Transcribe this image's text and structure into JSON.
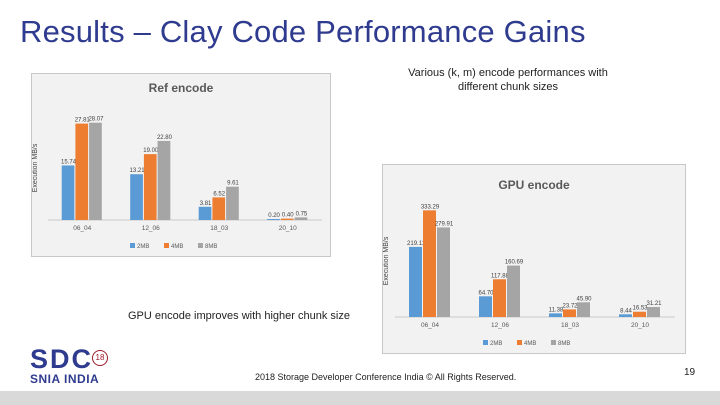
{
  "slide": {
    "title": "Results – Clay Code Performance Gains",
    "subtitle": "Various (k, m) encode performances with different chunk sizes",
    "note": "GPU encode improves with higher chunk size",
    "footer": "2018 Storage Developer Conference India ©  All Rights Reserved.",
    "page_number": "19",
    "logo": {
      "top": "SDC",
      "bottom": "SNIA INDIA",
      "year": "18"
    },
    "colors": {
      "title": "#2f3b8f",
      "brand_red": "#9b1c2c"
    }
  },
  "chart_data": [
    {
      "type": "bar",
      "title": "Ref encode",
      "xlabel": "",
      "ylabel": "Execution MB/s",
      "categories": [
        "06_04",
        "12_06",
        "18_03",
        "20_10"
      ],
      "ylim": [
        0,
        30
      ],
      "series": [
        {
          "name": "2MB",
          "color": "#5b9bd5",
          "values": [
            15.74,
            13.21,
            3.81,
            0.2
          ],
          "labels": [
            "15.74",
            "13.21",
            "3.81",
            "0.20"
          ]
        },
        {
          "name": "4MB",
          "color": "#ed7d31",
          "values": [
            27.81,
            19.0,
            6.52,
            0.4
          ],
          "labels": [
            "27.81",
            "19.00",
            "6.52",
            "0.40"
          ]
        },
        {
          "name": "8MB",
          "color": "#a5a5a5",
          "values": [
            28.07,
            22.8,
            9.61,
            0.75
          ],
          "labels": [
            "28.07",
            "22.80",
            "9.61",
            "0.75"
          ]
        }
      ],
      "legend": "bottom"
    },
    {
      "type": "bar",
      "title": "GPU encode",
      "xlabel": "",
      "ylabel": "Execution MB/s",
      "categories": [
        "06_04",
        "12_06",
        "18_03",
        "20_10"
      ],
      "ylim": [
        0,
        350
      ],
      "series": [
        {
          "name": "2MB",
          "color": "#5b9bd5",
          "values": [
            219.11,
            64.7,
            11.38,
            8.44
          ],
          "labels": [
            "219.11",
            "64.70",
            "11.38",
            "8.44"
          ]
        },
        {
          "name": "4MB",
          "color": "#ed7d31",
          "values": [
            333.29,
            117.88,
            23.72,
            16.53
          ],
          "labels": [
            "333.29",
            "117.88",
            "23.72",
            "16.53"
          ]
        },
        {
          "name": "8MB",
          "color": "#a5a5a5",
          "values": [
            279.91,
            160.69,
            45.9,
            31.21
          ],
          "labels": [
            "279.91",
            "160.69",
            "45.90",
            "31.21"
          ]
        }
      ],
      "legend": "bottom"
    }
  ]
}
